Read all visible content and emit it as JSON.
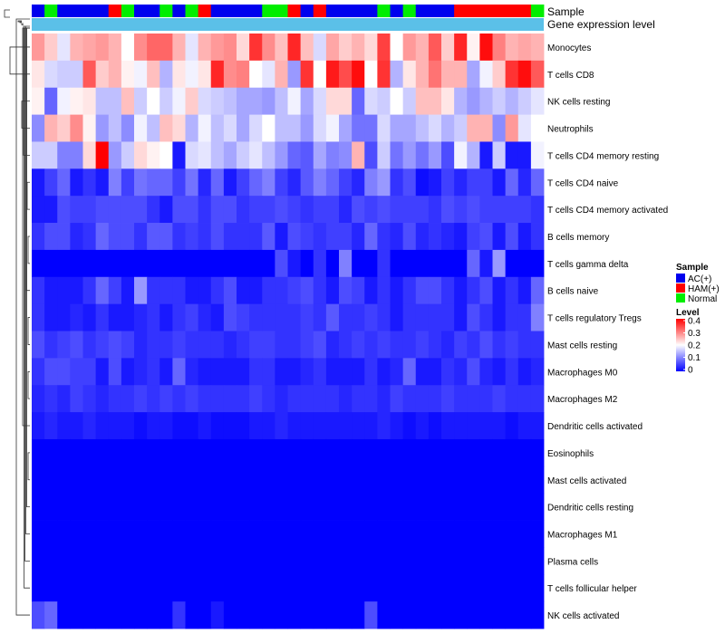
{
  "chart_data": {
    "type": "heatmap",
    "annotation_labels": {
      "sample": "Sample",
      "gene_expression": "Gene expression level"
    },
    "legend": {
      "sample_title": "Sample",
      "sample_entries": [
        {
          "label": "AC(+)",
          "color": "#0000ee"
        },
        {
          "label": "HAM(+)",
          "color": "#ff0000"
        },
        {
          "label": "Normal",
          "color": "#00ee00"
        }
      ],
      "level_title": "Level",
      "level_ticks": [
        "0.4",
        "0.3",
        "0.2",
        "0.1",
        "0"
      ]
    },
    "colors": {
      "low": "#0000ff",
      "mid": "#ffffff",
      "high": "#ff0000",
      "gene_bar": "#5bc0e8"
    },
    "color_scale": {
      "min": 0,
      "mid": 0.2,
      "max": 0.4
    },
    "samples": [
      "AC(+)",
      "Normal",
      "AC(+)",
      "AC(+)",
      "AC(+)",
      "AC(+)",
      "HAM(+)",
      "Normal",
      "AC(+)",
      "AC(+)",
      "Normal",
      "AC(+)",
      "Normal",
      "HAM(+)",
      "AC(+)",
      "AC(+)",
      "AC(+)",
      "AC(+)",
      "Normal",
      "Normal",
      "HAM(+)",
      "AC(+)",
      "HAM(+)",
      "AC(+)",
      "AC(+)",
      "AC(+)",
      "AC(+)",
      "Normal",
      "AC(+)",
      "Normal",
      "AC(+)",
      "AC(+)",
      "AC(+)",
      "HAM(+)",
      "HAM(+)",
      "HAM(+)",
      "HAM(+)",
      "HAM(+)",
      "HAM(+)",
      "Normal"
    ],
    "row_labels": [
      "Monocytes",
      "T cells CD8",
      "NK cells resting",
      "Neutrophils",
      "T cells CD4 memory resting",
      "T cells CD4 naive",
      "T cells CD4 memory activated",
      "B cells memory",
      "T cells gamma delta",
      "B cells naive",
      "T cells regulatory  Tregs",
      "Mast cells resting",
      "Macrophages M0",
      "Macrophages M2",
      "Dendritic cells activated",
      "Eosinophils",
      "Mast cells activated",
      "Dendritic cells resting",
      "Macrophages M1",
      "Plasma cells",
      "T cells follicular helper",
      "NK cells activated"
    ],
    "values": [
      [
        0.28,
        0.24,
        0.18,
        0.26,
        0.27,
        0.28,
        0.26,
        0.2,
        0.29,
        0.32,
        0.32,
        0.26,
        0.18,
        0.26,
        0.28,
        0.29,
        0.23,
        0.36,
        0.29,
        0.25,
        0.37,
        0.25,
        0.17,
        0.27,
        0.24,
        0.26,
        0.23,
        0.35,
        0.2,
        0.28,
        0.26,
        0.33,
        0.24,
        0.37,
        0.21,
        0.39,
        0.3,
        0.26,
        0.27,
        0.26
      ],
      [
        0.22,
        0.17,
        0.16,
        0.16,
        0.33,
        0.24,
        0.26,
        0.21,
        0.19,
        0.25,
        0.14,
        0.22,
        0.19,
        0.22,
        0.37,
        0.29,
        0.3,
        0.2,
        0.18,
        0.26,
        0.12,
        0.36,
        0.2,
        0.38,
        0.34,
        0.39,
        0.2,
        0.36,
        0.14,
        0.22,
        0.26,
        0.31,
        0.26,
        0.26,
        0.13,
        0.19,
        0.24,
        0.36,
        0.39,
        0.33
      ],
      [
        0.21,
        0.08,
        0.19,
        0.21,
        0.22,
        0.15,
        0.15,
        0.25,
        0.16,
        0.2,
        0.16,
        0.19,
        0.24,
        0.17,
        0.16,
        0.15,
        0.13,
        0.13,
        0.12,
        0.15,
        0.19,
        0.13,
        0.17,
        0.23,
        0.23,
        0.08,
        0.17,
        0.16,
        0.2,
        0.16,
        0.25,
        0.25,
        0.22,
        0.14,
        0.12,
        0.14,
        0.16,
        0.14,
        0.16,
        0.18
      ],
      [
        0.11,
        0.26,
        0.24,
        0.29,
        0.21,
        0.12,
        0.15,
        0.11,
        0.19,
        0.15,
        0.25,
        0.23,
        0.14,
        0.19,
        0.15,
        0.17,
        0.13,
        0.17,
        0.2,
        0.15,
        0.15,
        0.12,
        0.17,
        0.19,
        0.13,
        0.09,
        0.09,
        0.17,
        0.13,
        0.13,
        0.15,
        0.17,
        0.14,
        0.16,
        0.26,
        0.26,
        0.11,
        0.28,
        0.18,
        0.2
      ],
      [
        0.16,
        0.16,
        0.1,
        0.1,
        0.23,
        0.4,
        0.12,
        0.16,
        0.23,
        0.21,
        0.2,
        0.02,
        0.17,
        0.18,
        0.15,
        0.13,
        0.16,
        0.18,
        0.15,
        0.12,
        0.08,
        0.07,
        0.13,
        0.1,
        0.11,
        0.26,
        0.06,
        0.16,
        0.09,
        0.12,
        0.09,
        0.12,
        0.06,
        0.19,
        0.14,
        0.02,
        0.16,
        0.02,
        0.02,
        0.19
      ],
      [
        0.02,
        0.05,
        0.08,
        0.02,
        0.04,
        0.02,
        0.1,
        0.05,
        0.09,
        0.08,
        0.08,
        0.05,
        0.09,
        0.03,
        0.08,
        0.02,
        0.05,
        0.08,
        0.1,
        0.05,
        0.03,
        0.07,
        0.1,
        0.08,
        0.05,
        0.03,
        0.1,
        0.12,
        0.04,
        0.06,
        0.01,
        0.02,
        0.05,
        0.03,
        0.05,
        0.05,
        0.02,
        0.08,
        0.03,
        0.08
      ],
      [
        0.02,
        0.02,
        0.06,
        0.05,
        0.05,
        0.06,
        0.06,
        0.06,
        0.06,
        0.04,
        0.02,
        0.06,
        0.06,
        0.04,
        0.06,
        0.06,
        0.04,
        0.05,
        0.05,
        0.06,
        0.05,
        0.04,
        0.05,
        0.05,
        0.03,
        0.06,
        0.05,
        0.06,
        0.05,
        0.05,
        0.05,
        0.04,
        0.06,
        0.05,
        0.06,
        0.05,
        0.05,
        0.05,
        0.05,
        0.04
      ],
      [
        0.04,
        0.06,
        0.06,
        0.03,
        0.04,
        0.08,
        0.06,
        0.06,
        0.04,
        0.07,
        0.07,
        0.04,
        0.05,
        0.04,
        0.06,
        0.04,
        0.04,
        0.04,
        0.07,
        0.02,
        0.06,
        0.05,
        0.04,
        0.05,
        0.05,
        0.03,
        0.08,
        0.04,
        0.03,
        0.06,
        0.03,
        0.04,
        0.03,
        0.02,
        0.05,
        0.06,
        0.02,
        0.06,
        0.02,
        0.04
      ],
      [
        0.0,
        0.0,
        0.0,
        0.0,
        0.0,
        0.0,
        0.0,
        0.0,
        0.0,
        0.0,
        0.0,
        0.0,
        0.0,
        0.0,
        0.0,
        0.0,
        0.0,
        0.0,
        0.0,
        0.06,
        0.02,
        0.0,
        0.04,
        0.0,
        0.1,
        0.0,
        0.0,
        0.04,
        0.0,
        0.0,
        0.0,
        0.0,
        0.0,
        0.0,
        0.08,
        0.02,
        0.12,
        0.0,
        0.0,
        0.0
      ],
      [
        0.04,
        0.02,
        0.02,
        0.02,
        0.04,
        0.08,
        0.05,
        0.02,
        0.12,
        0.04,
        0.04,
        0.04,
        0.02,
        0.02,
        0.04,
        0.06,
        0.02,
        0.02,
        0.04,
        0.04,
        0.05,
        0.06,
        0.04,
        0.02,
        0.06,
        0.05,
        0.02,
        0.04,
        0.02,
        0.04,
        0.06,
        0.06,
        0.04,
        0.02,
        0.04,
        0.06,
        0.02,
        0.04,
        0.02,
        0.08
      ],
      [
        0.04,
        0.02,
        0.02,
        0.03,
        0.02,
        0.04,
        0.02,
        0.02,
        0.03,
        0.04,
        0.02,
        0.04,
        0.05,
        0.03,
        0.02,
        0.06,
        0.05,
        0.04,
        0.04,
        0.04,
        0.04,
        0.05,
        0.04,
        0.07,
        0.04,
        0.04,
        0.05,
        0.04,
        0.02,
        0.04,
        0.04,
        0.04,
        0.04,
        0.02,
        0.06,
        0.04,
        0.02,
        0.04,
        0.04,
        0.1
      ],
      [
        0.06,
        0.04,
        0.05,
        0.06,
        0.04,
        0.05,
        0.06,
        0.05,
        0.03,
        0.04,
        0.04,
        0.05,
        0.04,
        0.04,
        0.04,
        0.03,
        0.04,
        0.05,
        0.05,
        0.04,
        0.04,
        0.05,
        0.06,
        0.03,
        0.04,
        0.05,
        0.04,
        0.05,
        0.04,
        0.04,
        0.05,
        0.04,
        0.03,
        0.05,
        0.04,
        0.06,
        0.04,
        0.05,
        0.04,
        0.04
      ],
      [
        0.04,
        0.06,
        0.06,
        0.05,
        0.05,
        0.02,
        0.06,
        0.02,
        0.03,
        0.04,
        0.02,
        0.08,
        0.03,
        0.02,
        0.02,
        0.02,
        0.02,
        0.04,
        0.04,
        0.02,
        0.02,
        0.03,
        0.04,
        0.02,
        0.02,
        0.02,
        0.04,
        0.02,
        0.03,
        0.08,
        0.02,
        0.02,
        0.04,
        0.03,
        0.06,
        0.03,
        0.02,
        0.04,
        0.02,
        0.03
      ],
      [
        0.03,
        0.04,
        0.03,
        0.05,
        0.04,
        0.03,
        0.04,
        0.04,
        0.05,
        0.04,
        0.05,
        0.04,
        0.05,
        0.04,
        0.04,
        0.04,
        0.04,
        0.05,
        0.04,
        0.03,
        0.04,
        0.04,
        0.04,
        0.04,
        0.03,
        0.04,
        0.04,
        0.03,
        0.05,
        0.04,
        0.04,
        0.04,
        0.05,
        0.04,
        0.04,
        0.04,
        0.05,
        0.04,
        0.04,
        0.04
      ],
      [
        0.02,
        0.03,
        0.02,
        0.02,
        0.03,
        0.02,
        0.02,
        0.02,
        0.01,
        0.02,
        0.02,
        0.01,
        0.01,
        0.02,
        0.01,
        0.01,
        0.01,
        0.02,
        0.02,
        0.03,
        0.02,
        0.02,
        0.02,
        0.02,
        0.02,
        0.02,
        0.02,
        0.03,
        0.02,
        0.01,
        0.02,
        0.01,
        0.02,
        0.02,
        0.02,
        0.02,
        0.02,
        0.01,
        0.02,
        0.02
      ],
      [
        0.0,
        0.0,
        0.0,
        0.0,
        0.0,
        0.0,
        0.0,
        0.0,
        0.0,
        0.0,
        0.0,
        0.0,
        0.0,
        0.0,
        0.0,
        0.0,
        0.0,
        0.0,
        0.0,
        0.0,
        0.0,
        0.0,
        0.0,
        0.0,
        0.0,
        0.0,
        0.0,
        0.0,
        0.0,
        0.0,
        0.0,
        0.0,
        0.0,
        0.0,
        0.0,
        0.0,
        0.0,
        0.0,
        0.0,
        0.0
      ],
      [
        0.0,
        0.0,
        0.0,
        0.0,
        0.0,
        0.0,
        0.0,
        0.0,
        0.0,
        0.0,
        0.0,
        0.0,
        0.0,
        0.0,
        0.0,
        0.0,
        0.0,
        0.0,
        0.0,
        0.0,
        0.0,
        0.0,
        0.0,
        0.0,
        0.0,
        0.0,
        0.0,
        0.0,
        0.0,
        0.0,
        0.0,
        0.0,
        0.0,
        0.0,
        0.0,
        0.0,
        0.0,
        0.0,
        0.0,
        0.0
      ],
      [
        0.0,
        0.0,
        0.0,
        0.0,
        0.0,
        0.0,
        0.0,
        0.0,
        0.0,
        0.0,
        0.0,
        0.0,
        0.0,
        0.0,
        0.0,
        0.0,
        0.0,
        0.0,
        0.0,
        0.0,
        0.0,
        0.0,
        0.0,
        0.0,
        0.0,
        0.0,
        0.0,
        0.0,
        0.0,
        0.0,
        0.0,
        0.0,
        0.0,
        0.0,
        0.0,
        0.0,
        0.0,
        0.0,
        0.0,
        0.0
      ],
      [
        0.0,
        0.0,
        0.0,
        0.0,
        0.0,
        0.0,
        0.0,
        0.0,
        0.0,
        0.0,
        0.0,
        0.0,
        0.0,
        0.0,
        0.0,
        0.0,
        0.0,
        0.0,
        0.0,
        0.0,
        0.0,
        0.0,
        0.0,
        0.0,
        0.0,
        0.0,
        0.0,
        0.0,
        0.0,
        0.0,
        0.0,
        0.0,
        0.0,
        0.0,
        0.0,
        0.0,
        0.0,
        0.0,
        0.0,
        0.0
      ],
      [
        0.0,
        0.0,
        0.0,
        0.0,
        0.0,
        0.0,
        0.0,
        0.0,
        0.0,
        0.0,
        0.0,
        0.0,
        0.0,
        0.0,
        0.0,
        0.0,
        0.0,
        0.0,
        0.0,
        0.0,
        0.0,
        0.0,
        0.0,
        0.0,
        0.0,
        0.0,
        0.0,
        0.0,
        0.0,
        0.0,
        0.0,
        0.0,
        0.0,
        0.0,
        0.0,
        0.0,
        0.0,
        0.0,
        0.0,
        0.0
      ],
      [
        0.0,
        0.0,
        0.0,
        0.0,
        0.0,
        0.0,
        0.0,
        0.0,
        0.0,
        0.0,
        0.0,
        0.0,
        0.0,
        0.0,
        0.0,
        0.0,
        0.0,
        0.0,
        0.0,
        0.0,
        0.0,
        0.0,
        0.0,
        0.0,
        0.0,
        0.0,
        0.0,
        0.0,
        0.0,
        0.0,
        0.0,
        0.0,
        0.0,
        0.0,
        0.0,
        0.0,
        0.0,
        0.0,
        0.0,
        0.0
      ],
      [
        0.06,
        0.08,
        0.0,
        0.0,
        0.0,
        0.0,
        0.0,
        0.0,
        0.0,
        0.0,
        0.0,
        0.04,
        0.0,
        0.0,
        0.02,
        0.0,
        0.0,
        0.0,
        0.0,
        0.0,
        0.0,
        0.0,
        0.0,
        0.0,
        0.0,
        0.0,
        0.06,
        0.0,
        0.0,
        0.0,
        0.0,
        0.0,
        0.0,
        0.0,
        0.0,
        0.0,
        0.0,
        0.0,
        0.0,
        0.0
      ]
    ]
  }
}
